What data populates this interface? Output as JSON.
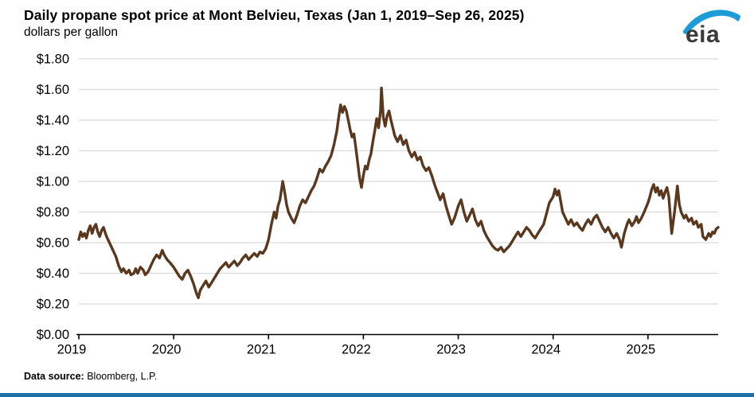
{
  "header": {
    "title": "Daily propane spot price at Mont Belvieu, Texas (Jan 1, 2019–Sep 26, 2025)",
    "subtitle": "dollars per gallon"
  },
  "logo": {
    "text": "eia"
  },
  "footer": {
    "source_label": "Data source:",
    "source_value": "Bloomberg, L.P."
  },
  "colors": {
    "line": "#5a381e",
    "grid": "#d9d9d9",
    "axis": "#000000",
    "text": "#000000",
    "logo_text": "#3a3a3a",
    "logo_swoosh": "#1e9cd7",
    "accent_bar": "#2170a8"
  },
  "chart_data": {
    "type": "line",
    "title": "Daily propane spot price at Mont Belvieu, Texas (Jan 1, 2019–Sep 26, 2025)",
    "ylabel": "dollars per gallon",
    "xlabel": "",
    "grid": "horizontal",
    "legend_position": "none",
    "xlim": [
      2019.0,
      2025.74
    ],
    "ylim": [
      0,
      1.8
    ],
    "x_ticks": [
      2019,
      2020,
      2021,
      2022,
      2023,
      2024,
      2025
    ],
    "y_ticks": [
      0,
      0.2,
      0.4,
      0.6,
      0.8,
      1.0,
      1.2,
      1.4,
      1.6,
      1.8
    ],
    "y_tick_labels": [
      "$0.00",
      "$0.20",
      "$0.40",
      "$0.60",
      "$0.80",
      "$1.00",
      "$1.20",
      "$1.40",
      "$1.60",
      "$1.80"
    ],
    "series": [
      {
        "name": "Mont Belvieu propane spot price",
        "x": [
          2019.0,
          2019.02,
          2019.04,
          2019.06,
          2019.08,
          2019.1,
          2019.12,
          2019.14,
          2019.16,
          2019.18,
          2019.2,
          2019.22,
          2019.24,
          2019.26,
          2019.28,
          2019.3,
          2019.33,
          2019.36,
          2019.39,
          2019.42,
          2019.45,
          2019.47,
          2019.5,
          2019.53,
          2019.55,
          2019.58,
          2019.6,
          2019.62,
          2019.65,
          2019.68,
          2019.7,
          2019.73,
          2019.76,
          2019.79,
          2019.82,
          2019.85,
          2019.88,
          2019.9,
          2019.93,
          2019.96,
          2020.0,
          2020.03,
          2020.06,
          2020.09,
          2020.12,
          2020.15,
          2020.18,
          2020.21,
          2020.24,
          2020.26,
          2020.28,
          2020.31,
          2020.34,
          2020.37,
          2020.4,
          2020.43,
          2020.46,
          2020.49,
          2020.52,
          2020.55,
          2020.58,
          2020.61,
          2020.64,
          2020.67,
          2020.7,
          2020.73,
          2020.76,
          2020.79,
          2020.82,
          2020.85,
          2020.88,
          2020.91,
          2020.94,
          2020.97,
          2021.0,
          2021.03,
          2021.06,
          2021.08,
          2021.1,
          2021.12,
          2021.15,
          2021.17,
          2021.19,
          2021.21,
          2021.24,
          2021.27,
          2021.3,
          2021.33,
          2021.36,
          2021.39,
          2021.42,
          2021.45,
          2021.48,
          2021.51,
          2021.54,
          2021.57,
          2021.6,
          2021.63,
          2021.66,
          2021.69,
          2021.72,
          2021.74,
          2021.76,
          2021.78,
          2021.8,
          2021.82,
          2021.84,
          2021.86,
          2021.88,
          2021.9,
          2021.92,
          2021.94,
          2021.96,
          2021.98,
          2022.0,
          2022.02,
          2022.04,
          2022.06,
          2022.08,
          2022.1,
          2022.12,
          2022.14,
          2022.16,
          2022.18,
          2022.19,
          2022.21,
          2022.23,
          2022.25,
          2022.27,
          2022.29,
          2022.31,
          2022.33,
          2022.36,
          2022.39,
          2022.42,
          2022.45,
          2022.48,
          2022.51,
          2022.54,
          2022.57,
          2022.6,
          2022.63,
          2022.66,
          2022.69,
          2022.72,
          2022.75,
          2022.78,
          2022.81,
          2022.84,
          2022.87,
          2022.9,
          2022.93,
          2022.96,
          2023.0,
          2023.03,
          2023.06,
          2023.09,
          2023.12,
          2023.15,
          2023.18,
          2023.21,
          2023.24,
          2023.27,
          2023.3,
          2023.33,
          2023.36,
          2023.39,
          2023.42,
          2023.45,
          2023.48,
          2023.51,
          2023.54,
          2023.57,
          2023.6,
          2023.63,
          2023.66,
          2023.69,
          2023.72,
          2023.75,
          2023.78,
          2023.81,
          2023.84,
          2023.87,
          2023.9,
          2023.93,
          2023.96,
          2024.0,
          2024.02,
          2024.04,
          2024.06,
          2024.08,
          2024.1,
          2024.13,
          2024.16,
          2024.19,
          2024.22,
          2024.25,
          2024.28,
          2024.31,
          2024.34,
          2024.37,
          2024.4,
          2024.43,
          2024.46,
          2024.49,
          2024.52,
          2024.55,
          2024.58,
          2024.61,
          2024.64,
          2024.67,
          2024.7,
          2024.72,
          2024.75,
          2024.78,
          2024.8,
          2024.83,
          2024.86,
          2024.88,
          2024.9,
          2024.93,
          2024.96,
          2025.0,
          2025.02,
          2025.04,
          2025.06,
          2025.08,
          2025.1,
          2025.12,
          2025.14,
          2025.16,
          2025.18,
          2025.2,
          2025.22,
          2025.25,
          2025.28,
          2025.31,
          2025.33,
          2025.35,
          2025.38,
          2025.4,
          2025.43,
          2025.46,
          2025.48,
          2025.51,
          2025.53,
          2025.56,
          2025.58,
          2025.61,
          2025.64,
          2025.66,
          2025.68,
          2025.7,
          2025.72,
          2025.74
        ],
        "values": [
          0.62,
          0.67,
          0.64,
          0.66,
          0.63,
          0.68,
          0.71,
          0.66,
          0.7,
          0.72,
          0.67,
          0.64,
          0.68,
          0.7,
          0.66,
          0.63,
          0.59,
          0.55,
          0.51,
          0.45,
          0.41,
          0.43,
          0.4,
          0.42,
          0.39,
          0.4,
          0.43,
          0.4,
          0.44,
          0.42,
          0.39,
          0.41,
          0.45,
          0.49,
          0.52,
          0.5,
          0.55,
          0.52,
          0.49,
          0.47,
          0.44,
          0.41,
          0.38,
          0.36,
          0.4,
          0.42,
          0.38,
          0.33,
          0.27,
          0.24,
          0.29,
          0.32,
          0.35,
          0.31,
          0.34,
          0.37,
          0.4,
          0.43,
          0.45,
          0.47,
          0.44,
          0.46,
          0.48,
          0.45,
          0.47,
          0.5,
          0.52,
          0.49,
          0.51,
          0.53,
          0.51,
          0.54,
          0.53,
          0.56,
          0.62,
          0.72,
          0.8,
          0.76,
          0.84,
          0.88,
          1.0,
          0.93,
          0.85,
          0.8,
          0.76,
          0.73,
          0.78,
          0.84,
          0.88,
          0.86,
          0.9,
          0.94,
          0.97,
          1.02,
          1.08,
          1.06,
          1.1,
          1.13,
          1.17,
          1.24,
          1.33,
          1.42,
          1.5,
          1.45,
          1.49,
          1.46,
          1.4,
          1.34,
          1.29,
          1.31,
          1.22,
          1.12,
          1.02,
          0.96,
          1.04,
          1.1,
          1.08,
          1.14,
          1.18,
          1.26,
          1.33,
          1.41,
          1.35,
          1.46,
          1.61,
          1.42,
          1.36,
          1.43,
          1.46,
          1.4,
          1.35,
          1.3,
          1.26,
          1.3,
          1.24,
          1.27,
          1.2,
          1.16,
          1.19,
          1.14,
          1.16,
          1.1,
          1.07,
          1.09,
          1.04,
          0.98,
          0.93,
          0.88,
          0.92,
          0.84,
          0.78,
          0.72,
          0.76,
          0.84,
          0.88,
          0.8,
          0.74,
          0.78,
          0.82,
          0.75,
          0.71,
          0.74,
          0.68,
          0.64,
          0.61,
          0.58,
          0.56,
          0.55,
          0.57,
          0.54,
          0.56,
          0.58,
          0.61,
          0.64,
          0.67,
          0.64,
          0.67,
          0.7,
          0.68,
          0.65,
          0.63,
          0.66,
          0.69,
          0.72,
          0.79,
          0.86,
          0.9,
          0.95,
          0.91,
          0.94,
          0.87,
          0.8,
          0.76,
          0.72,
          0.75,
          0.71,
          0.73,
          0.7,
          0.68,
          0.72,
          0.75,
          0.72,
          0.76,
          0.78,
          0.74,
          0.7,
          0.67,
          0.7,
          0.66,
          0.63,
          0.66,
          0.62,
          0.57,
          0.66,
          0.72,
          0.75,
          0.71,
          0.74,
          0.77,
          0.73,
          0.76,
          0.8,
          0.86,
          0.9,
          0.95,
          0.98,
          0.93,
          0.96,
          0.91,
          0.94,
          0.89,
          0.93,
          0.96,
          0.9,
          0.66,
          0.8,
          0.97,
          0.85,
          0.8,
          0.76,
          0.78,
          0.74,
          0.76,
          0.72,
          0.74,
          0.7,
          0.72,
          0.64,
          0.62,
          0.66,
          0.64,
          0.67,
          0.66,
          0.69,
          0.7
        ]
      }
    ]
  }
}
